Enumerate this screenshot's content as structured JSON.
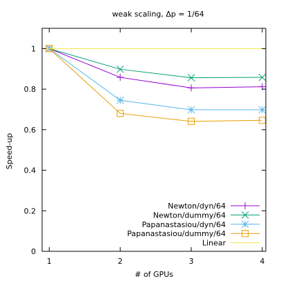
{
  "chart_data": {
    "type": "line",
    "title": "weak scaling, Δp = 1/64",
    "xlabel": "# of GPUs",
    "ylabel": "Speed-up",
    "xlim": [
      0.9,
      4.05
    ],
    "ylim": [
      0,
      1.1
    ],
    "x_ticks": [
      "1",
      "2",
      "3",
      "4"
    ],
    "y_ticks": [
      "0",
      "0.2",
      "0.4",
      "0.6",
      "0.8",
      "1"
    ],
    "grid": false,
    "legend_position": "bottom-right",
    "x": [
      1,
      2,
      3,
      4
    ],
    "series": [
      {
        "name": "Newton/dyn/64",
        "values": [
          1.0,
          0.858,
          0.806,
          0.812
        ],
        "color": "#9400d3",
        "marker": "plus"
      },
      {
        "name": "Newton/dummy/64",
        "values": [
          1.0,
          0.898,
          0.856,
          0.858
        ],
        "color": "#009e73",
        "marker": "cross"
      },
      {
        "name": "Papanastasiou/dyn/64",
        "values": [
          1.0,
          0.745,
          0.698,
          0.698
        ],
        "color": "#56b4e9",
        "marker": "star"
      },
      {
        "name": "Papanastasiou/dummy/64",
        "values": [
          1.0,
          0.68,
          0.641,
          0.646
        ],
        "color": "#e69f00",
        "marker": "square"
      },
      {
        "name": "Linear",
        "values": [
          1.0,
          1.0,
          1.0,
          1.0
        ],
        "color": "#f0e442",
        "marker": "none"
      }
    ]
  }
}
